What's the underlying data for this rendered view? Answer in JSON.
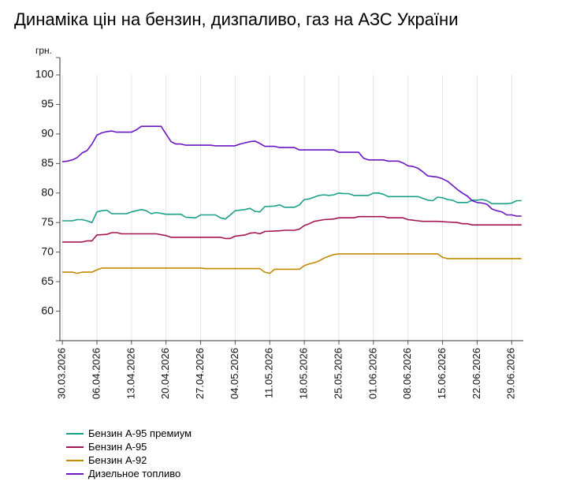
{
  "page": {
    "title": "Динаміка цін на бензин, дизпаливо, газ на АЗС України"
  },
  "chart_data": {
    "type": "line",
    "title": "Динаміка цін на бензин, дизпаливо, газ на АЗС України",
    "ylabel": "грн.",
    "xlabel": "",
    "ylim": [
      55,
      100
    ],
    "yticks": [
      60,
      65,
      70,
      75,
      80,
      85,
      90,
      95,
      100
    ],
    "xlim": [
      "2026-03-30",
      "2026-07-01"
    ],
    "xticks": [
      "30.03.2026",
      "06.04.2026",
      "13.04.2026",
      "20.04.2026",
      "27.04.2026",
      "04.05.2026",
      "11.05.2026",
      "18.05.2026",
      "25.05.2026",
      "01.06.2026",
      "08.06.2026",
      "15.06.2026",
      "22.06.2026",
      "29.06.2026"
    ],
    "grid": "vertical",
    "legend_position": "bottom-left",
    "series": [
      {
        "name": "Бензин А-95 премиум",
        "color": "#1aa088",
        "points": [
          [
            "2026-03-30",
            75.3
          ],
          [
            "2026-04-01",
            75.3
          ],
          [
            "2026-04-02",
            75.5
          ],
          [
            "2026-04-03",
            75.5
          ],
          [
            "2026-04-04",
            75.3
          ],
          [
            "2026-04-05",
            75.0
          ],
          [
            "2026-04-06",
            76.8
          ],
          [
            "2026-04-07",
            77.0
          ],
          [
            "2026-04-08",
            77.1
          ],
          [
            "2026-04-09",
            76.5
          ],
          [
            "2026-04-12",
            76.5
          ],
          [
            "2026-04-13",
            76.8
          ],
          [
            "2026-04-15",
            77.2
          ],
          [
            "2026-04-16",
            77.0
          ],
          [
            "2026-04-17",
            76.5
          ],
          [
            "2026-04-18",
            76.7
          ],
          [
            "2026-04-20",
            76.4
          ],
          [
            "2026-04-23",
            76.4
          ],
          [
            "2026-04-24",
            75.9
          ],
          [
            "2026-04-26",
            75.8
          ],
          [
            "2026-04-27",
            76.3
          ],
          [
            "2026-04-30",
            76.3
          ],
          [
            "2026-05-01",
            75.8
          ],
          [
            "2026-05-02",
            75.6
          ],
          [
            "2026-05-03",
            76.3
          ],
          [
            "2026-05-04",
            77.0
          ],
          [
            "2026-05-06",
            77.2
          ],
          [
            "2026-05-07",
            77.4
          ],
          [
            "2026-05-08",
            76.9
          ],
          [
            "2026-05-09",
            76.8
          ],
          [
            "2026-05-10",
            77.7
          ],
          [
            "2026-05-12",
            77.8
          ],
          [
            "2026-05-13",
            78.0
          ],
          [
            "2026-05-14",
            77.6
          ],
          [
            "2026-05-16",
            77.6
          ],
          [
            "2026-05-17",
            78.0
          ],
          [
            "2026-05-18",
            78.9
          ],
          [
            "2026-05-19",
            79.0
          ],
          [
            "2026-05-21",
            79.6
          ],
          [
            "2026-05-22",
            79.7
          ],
          [
            "2026-05-23",
            79.6
          ],
          [
            "2026-05-24",
            79.7
          ],
          [
            "2026-05-25",
            80.0
          ],
          [
            "2026-05-26",
            79.9
          ],
          [
            "2026-05-27",
            79.9
          ],
          [
            "2026-05-28",
            79.6
          ],
          [
            "2026-05-31",
            79.6
          ],
          [
            "2026-06-01",
            80.0
          ],
          [
            "2026-06-02",
            80.0
          ],
          [
            "2026-06-03",
            79.8
          ],
          [
            "2026-06-04",
            79.4
          ],
          [
            "2026-06-10",
            79.4
          ],
          [
            "2026-06-11",
            79.1
          ],
          [
            "2026-06-12",
            78.8
          ],
          [
            "2026-06-13",
            78.7
          ],
          [
            "2026-06-14",
            79.3
          ],
          [
            "2026-06-15",
            79.2
          ],
          [
            "2026-06-16",
            78.9
          ],
          [
            "2026-06-17",
            78.8
          ],
          [
            "2026-06-18",
            78.4
          ],
          [
            "2026-06-20",
            78.4
          ],
          [
            "2026-06-21",
            78.8
          ],
          [
            "2026-06-22",
            78.8
          ],
          [
            "2026-06-23",
            78.9
          ],
          [
            "2026-06-24",
            78.7
          ],
          [
            "2026-06-25",
            78.2
          ],
          [
            "2026-06-28",
            78.2
          ],
          [
            "2026-06-29",
            78.3
          ],
          [
            "2026-06-30",
            78.7
          ],
          [
            "2026-07-01",
            78.7
          ]
        ]
      },
      {
        "name": "Бензин А-95",
        "color": "#a31550",
        "points": [
          [
            "2026-03-30",
            71.7
          ],
          [
            "2026-04-03",
            71.7
          ],
          [
            "2026-04-04",
            71.9
          ],
          [
            "2026-04-05",
            71.9
          ],
          [
            "2026-04-06",
            72.9
          ],
          [
            "2026-04-08",
            73.0
          ],
          [
            "2026-04-09",
            73.3
          ],
          [
            "2026-04-10",
            73.3
          ],
          [
            "2026-04-11",
            73.1
          ],
          [
            "2026-04-18",
            73.1
          ],
          [
            "2026-04-20",
            72.8
          ],
          [
            "2026-04-21",
            72.5
          ],
          [
            "2026-05-01",
            72.5
          ],
          [
            "2026-05-02",
            72.3
          ],
          [
            "2026-05-03",
            72.3
          ],
          [
            "2026-05-04",
            72.7
          ],
          [
            "2026-05-05",
            72.8
          ],
          [
            "2026-05-06",
            72.9
          ],
          [
            "2026-05-07",
            73.2
          ],
          [
            "2026-05-08",
            73.3
          ],
          [
            "2026-05-09",
            73.1
          ],
          [
            "2026-05-10",
            73.5
          ],
          [
            "2026-05-13",
            73.6
          ],
          [
            "2026-05-14",
            73.7
          ],
          [
            "2026-05-16",
            73.7
          ],
          [
            "2026-05-17",
            73.9
          ],
          [
            "2026-05-18",
            74.5
          ],
          [
            "2026-05-19",
            74.8
          ],
          [
            "2026-05-20",
            75.2
          ],
          [
            "2026-05-22",
            75.5
          ],
          [
            "2026-05-24",
            75.6
          ],
          [
            "2026-05-25",
            75.8
          ],
          [
            "2026-05-28",
            75.8
          ],
          [
            "2026-05-29",
            76.0
          ],
          [
            "2026-06-03",
            76.0
          ],
          [
            "2026-06-04",
            75.8
          ],
          [
            "2026-06-07",
            75.8
          ],
          [
            "2026-06-08",
            75.5
          ],
          [
            "2026-06-09",
            75.4
          ],
          [
            "2026-06-10",
            75.3
          ],
          [
            "2026-06-11",
            75.2
          ],
          [
            "2026-06-14",
            75.2
          ],
          [
            "2026-06-16",
            75.1
          ],
          [
            "2026-06-18",
            75.0
          ],
          [
            "2026-06-19",
            74.8
          ],
          [
            "2026-06-20",
            74.8
          ],
          [
            "2026-06-21",
            74.6
          ],
          [
            "2026-07-01",
            74.6
          ]
        ]
      },
      {
        "name": "Бензин А-92",
        "color": "#c18a00",
        "points": [
          [
            "2026-03-30",
            66.6
          ],
          [
            "2026-04-01",
            66.6
          ],
          [
            "2026-04-02",
            66.4
          ],
          [
            "2026-04-03",
            66.6
          ],
          [
            "2026-04-05",
            66.6
          ],
          [
            "2026-04-06",
            67.0
          ],
          [
            "2026-04-07",
            67.3
          ],
          [
            "2026-04-27",
            67.3
          ],
          [
            "2026-04-28",
            67.2
          ],
          [
            "2026-05-09",
            67.2
          ],
          [
            "2026-05-10",
            66.6
          ],
          [
            "2026-05-11",
            66.4
          ],
          [
            "2026-05-12",
            67.1
          ],
          [
            "2026-05-17",
            67.1
          ],
          [
            "2026-05-18",
            67.7
          ],
          [
            "2026-05-19",
            68.0
          ],
          [
            "2026-05-20",
            68.2
          ],
          [
            "2026-05-21",
            68.5
          ],
          [
            "2026-05-22",
            69.0
          ],
          [
            "2026-05-23",
            69.3
          ],
          [
            "2026-05-24",
            69.6
          ],
          [
            "2026-05-25",
            69.7
          ],
          [
            "2026-06-14",
            69.7
          ],
          [
            "2026-06-15",
            69.1
          ],
          [
            "2026-06-16",
            68.9
          ],
          [
            "2026-07-01",
            68.9
          ]
        ]
      },
      {
        "name": "Дизельное топливо",
        "color": "#6a16c2",
        "points": [
          [
            "2026-03-30",
            85.3
          ],
          [
            "2026-03-31",
            85.4
          ],
          [
            "2026-04-01",
            85.6
          ],
          [
            "2026-04-02",
            86.0
          ],
          [
            "2026-04-03",
            86.8
          ],
          [
            "2026-04-04",
            87.2
          ],
          [
            "2026-04-05",
            88.3
          ],
          [
            "2026-04-06",
            89.8
          ],
          [
            "2026-04-07",
            90.2
          ],
          [
            "2026-04-08",
            90.4
          ],
          [
            "2026-04-09",
            90.5
          ],
          [
            "2026-04-10",
            90.3
          ],
          [
            "2026-04-13",
            90.3
          ],
          [
            "2026-04-14",
            90.7
          ],
          [
            "2026-04-15",
            91.3
          ],
          [
            "2026-04-19",
            91.3
          ],
          [
            "2026-04-20",
            90.0
          ],
          [
            "2026-04-21",
            88.7
          ],
          [
            "2026-04-22",
            88.3
          ],
          [
            "2026-04-23",
            88.3
          ],
          [
            "2026-04-24",
            88.1
          ],
          [
            "2026-04-29",
            88.1
          ],
          [
            "2026-04-30",
            88.0
          ],
          [
            "2026-05-04",
            88.0
          ],
          [
            "2026-05-05",
            88.3
          ],
          [
            "2026-05-06",
            88.5
          ],
          [
            "2026-05-07",
            88.7
          ],
          [
            "2026-05-08",
            88.8
          ],
          [
            "2026-05-09",
            88.4
          ],
          [
            "2026-05-10",
            87.9
          ],
          [
            "2026-05-12",
            87.9
          ],
          [
            "2026-05-13",
            87.7
          ],
          [
            "2026-05-16",
            87.7
          ],
          [
            "2026-05-17",
            87.3
          ],
          [
            "2026-05-24",
            87.3
          ],
          [
            "2026-05-25",
            86.9
          ],
          [
            "2026-05-29",
            86.9
          ],
          [
            "2026-05-30",
            85.9
          ],
          [
            "2026-05-31",
            85.6
          ],
          [
            "2026-06-03",
            85.6
          ],
          [
            "2026-06-04",
            85.4
          ],
          [
            "2026-06-06",
            85.4
          ],
          [
            "2026-06-07",
            85.1
          ],
          [
            "2026-06-08",
            84.6
          ],
          [
            "2026-06-09",
            84.5
          ],
          [
            "2026-06-10",
            84.2
          ],
          [
            "2026-06-11",
            83.6
          ],
          [
            "2026-06-12",
            82.9
          ],
          [
            "2026-06-13",
            82.8
          ],
          [
            "2026-06-14",
            82.7
          ],
          [
            "2026-06-15",
            82.4
          ],
          [
            "2026-06-16",
            82.0
          ],
          [
            "2026-06-17",
            81.3
          ],
          [
            "2026-06-18",
            80.6
          ],
          [
            "2026-06-19",
            80.0
          ],
          [
            "2026-06-20",
            79.5
          ],
          [
            "2026-06-21",
            78.7
          ],
          [
            "2026-06-22",
            78.4
          ],
          [
            "2026-06-23",
            78.3
          ],
          [
            "2026-06-24",
            78.1
          ],
          [
            "2026-06-25",
            77.3
          ],
          [
            "2026-06-26",
            77.0
          ],
          [
            "2026-06-27",
            76.8
          ],
          [
            "2026-06-28",
            76.3
          ],
          [
            "2026-06-29",
            76.3
          ],
          [
            "2026-06-30",
            76.1
          ],
          [
            "2026-07-01",
            76.1
          ]
        ]
      }
    ]
  }
}
